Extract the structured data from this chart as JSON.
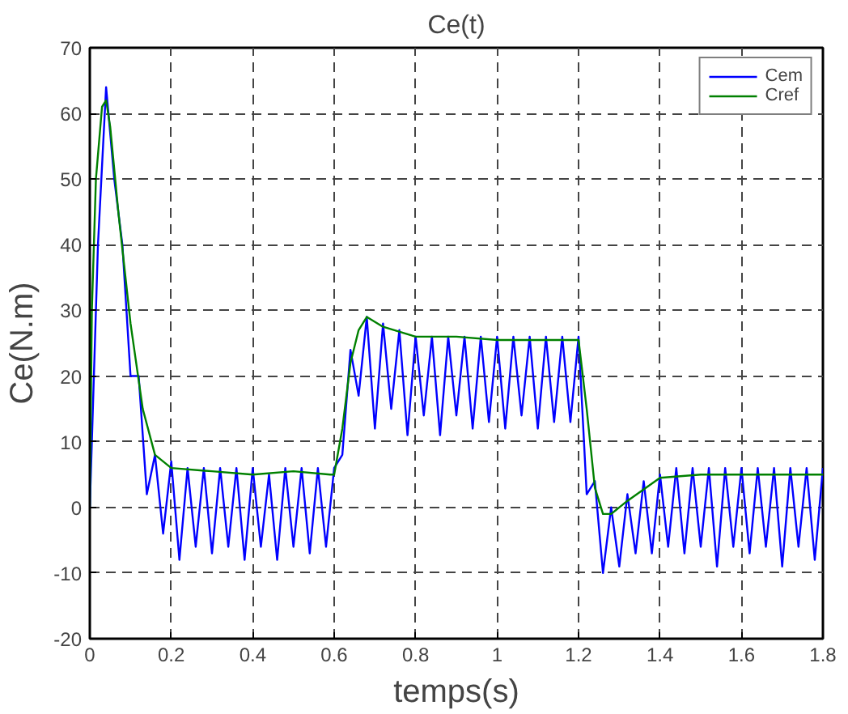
{
  "chart_data": {
    "type": "line",
    "title": "Ce(t)",
    "xlabel": "temps(s)",
    "ylabel": "Ce(N.m)",
    "xlim": [
      0,
      1.8
    ],
    "ylim": [
      -20,
      70
    ],
    "xticks": [
      0,
      0.2,
      0.4,
      0.6,
      0.8,
      1,
      1.2,
      1.4,
      1.6,
      1.8
    ],
    "yticks": [
      -20,
      -10,
      0,
      10,
      20,
      30,
      40,
      50,
      60,
      70
    ],
    "grid": true,
    "legend": "top right",
    "line_style": "solid",
    "series": [
      {
        "name": "Cem",
        "color": "#0000ff",
        "x": [
          0,
          0.02,
          0.04,
          0.06,
          0.08,
          0.1,
          0.12,
          0.14,
          0.16,
          0.18,
          0.2,
          0.22,
          0.24,
          0.26,
          0.28,
          0.3,
          0.32,
          0.34,
          0.36,
          0.38,
          0.4,
          0.42,
          0.44,
          0.46,
          0.48,
          0.5,
          0.52,
          0.54,
          0.56,
          0.58,
          0.6,
          0.62,
          0.64,
          0.66,
          0.68,
          0.7,
          0.72,
          0.74,
          0.76,
          0.78,
          0.8,
          0.82,
          0.84,
          0.86,
          0.88,
          0.9,
          0.92,
          0.94,
          0.96,
          0.98,
          1,
          1.02,
          1.04,
          1.06,
          1.08,
          1.1,
          1.12,
          1.14,
          1.16,
          1.18,
          1.2,
          1.22,
          1.24,
          1.26,
          1.28,
          1.3,
          1.32,
          1.34,
          1.36,
          1.38,
          1.4,
          1.42,
          1.44,
          1.46,
          1.48,
          1.5,
          1.52,
          1.54,
          1.56,
          1.58,
          1.6,
          1.62,
          1.64,
          1.66,
          1.68,
          1.7,
          1.72,
          1.74,
          1.76,
          1.78,
          1.8
        ],
        "values": [
          0,
          40,
          64,
          50,
          40,
          20,
          20,
          2,
          8,
          -4,
          7,
          -8,
          6,
          -6,
          6,
          -7,
          6,
          -6,
          6,
          -8,
          6,
          -6,
          5,
          -8,
          6,
          -6,
          6,
          -7,
          6,
          -6,
          6,
          8,
          24,
          17,
          29,
          12,
          28,
          15,
          27,
          11,
          26,
          14,
          26,
          11,
          26,
          14,
          26,
          12,
          26,
          13,
          26,
          12,
          26,
          14,
          26,
          12,
          26,
          13,
          26,
          13,
          26,
          2,
          4,
          -10,
          0,
          -9,
          2,
          -7,
          4,
          -7,
          5,
          -6,
          6,
          -7,
          6,
          -6,
          6,
          -9,
          6,
          -6,
          6,
          -7,
          6,
          -6,
          6,
          -9,
          6,
          -6,
          6,
          -8,
          6
        ]
      },
      {
        "name": "Cref",
        "color": "#008000",
        "x": [
          0,
          0.005,
          0.015,
          0.03,
          0.04,
          0.05,
          0.07,
          0.1,
          0.13,
          0.16,
          0.2,
          0.3,
          0.4,
          0.5,
          0.59,
          0.6,
          0.62,
          0.64,
          0.66,
          0.68,
          0.72,
          0.8,
          0.9,
          1.0,
          1.1,
          1.2,
          1.22,
          1.24,
          1.26,
          1.28,
          1.32,
          1.4,
          1.5,
          1.6,
          1.7,
          1.8
        ],
        "values": [
          0,
          30,
          50,
          61,
          62,
          58,
          45,
          28,
          15,
          8,
          6,
          5.5,
          5,
          5.5,
          5,
          5,
          12,
          22,
          27,
          29,
          27.5,
          26,
          26,
          25.5,
          25.5,
          25.5,
          15,
          3,
          -1,
          -1,
          1,
          4.5,
          5,
          5,
          5,
          5
        ]
      }
    ]
  }
}
